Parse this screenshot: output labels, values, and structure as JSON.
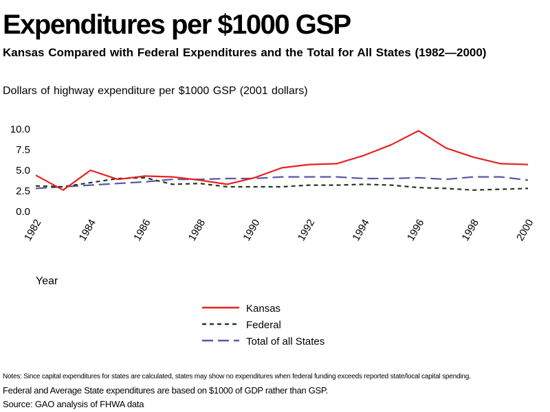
{
  "title": "Expenditures per $1000 GSP",
  "subtitle": "Kansas Compared with Federal Expenditures and the Total for All States (1982—2000)",
  "notes": "Notes: Since capital expenditures for states are calculated, states may show no expenditures when federal funding exceeds reported state/local capital spending.",
  "note2": "Federal and Average State expenditures are based on $1000 of GDP rather than GSP.",
  "source": "Source: GAO analysis of FHWA data",
  "chart_data": {
    "type": "line",
    "ylabel": "Dollars of highway expenditure per $1000 GSP (2001 dollars)",
    "xlabel": "Year",
    "x": [
      1982,
      1983,
      1984,
      1985,
      1986,
      1987,
      1988,
      1989,
      1990,
      1991,
      1992,
      1993,
      1994,
      1995,
      1996,
      1997,
      1998,
      1999,
      2000
    ],
    "xticks": [
      "1982",
      "1984",
      "1986",
      "1988",
      "1990",
      "1992",
      "1994",
      "1996",
      "1998",
      "2000"
    ],
    "yticks": [
      "10.0",
      "7.5",
      "5.0",
      "2.5",
      "0.0"
    ],
    "ylim": [
      0,
      10
    ],
    "grid": false,
    "legend_position": "bottom",
    "series": [
      {
        "name": "Kansas",
        "color": "#e8201e",
        "dash": "solid",
        "values": [
          4.4,
          2.6,
          5.0,
          3.9,
          4.3,
          4.2,
          3.8,
          3.3,
          4.1,
          5.3,
          5.7,
          5.8,
          6.8,
          8.1,
          9.8,
          7.7,
          6.6,
          5.8,
          5.7
        ]
      },
      {
        "name": "Federal",
        "color": "#1c3a1c",
        "dash": "short",
        "values": [
          3.1,
          3.0,
          3.5,
          4.0,
          4.1,
          3.3,
          3.4,
          3.0,
          3.0,
          3.0,
          3.2,
          3.2,
          3.3,
          3.2,
          2.9,
          2.8,
          2.6,
          2.7,
          2.8
        ]
      },
      {
        "name": "Total of all States",
        "color": "#5656a8",
        "dash": "long",
        "values": [
          2.8,
          3.0,
          3.2,
          3.4,
          3.6,
          3.9,
          3.9,
          4.0,
          4.0,
          4.2,
          4.2,
          4.2,
          4.0,
          4.0,
          4.1,
          3.9,
          4.2,
          4.2,
          3.8
        ]
      }
    ]
  }
}
